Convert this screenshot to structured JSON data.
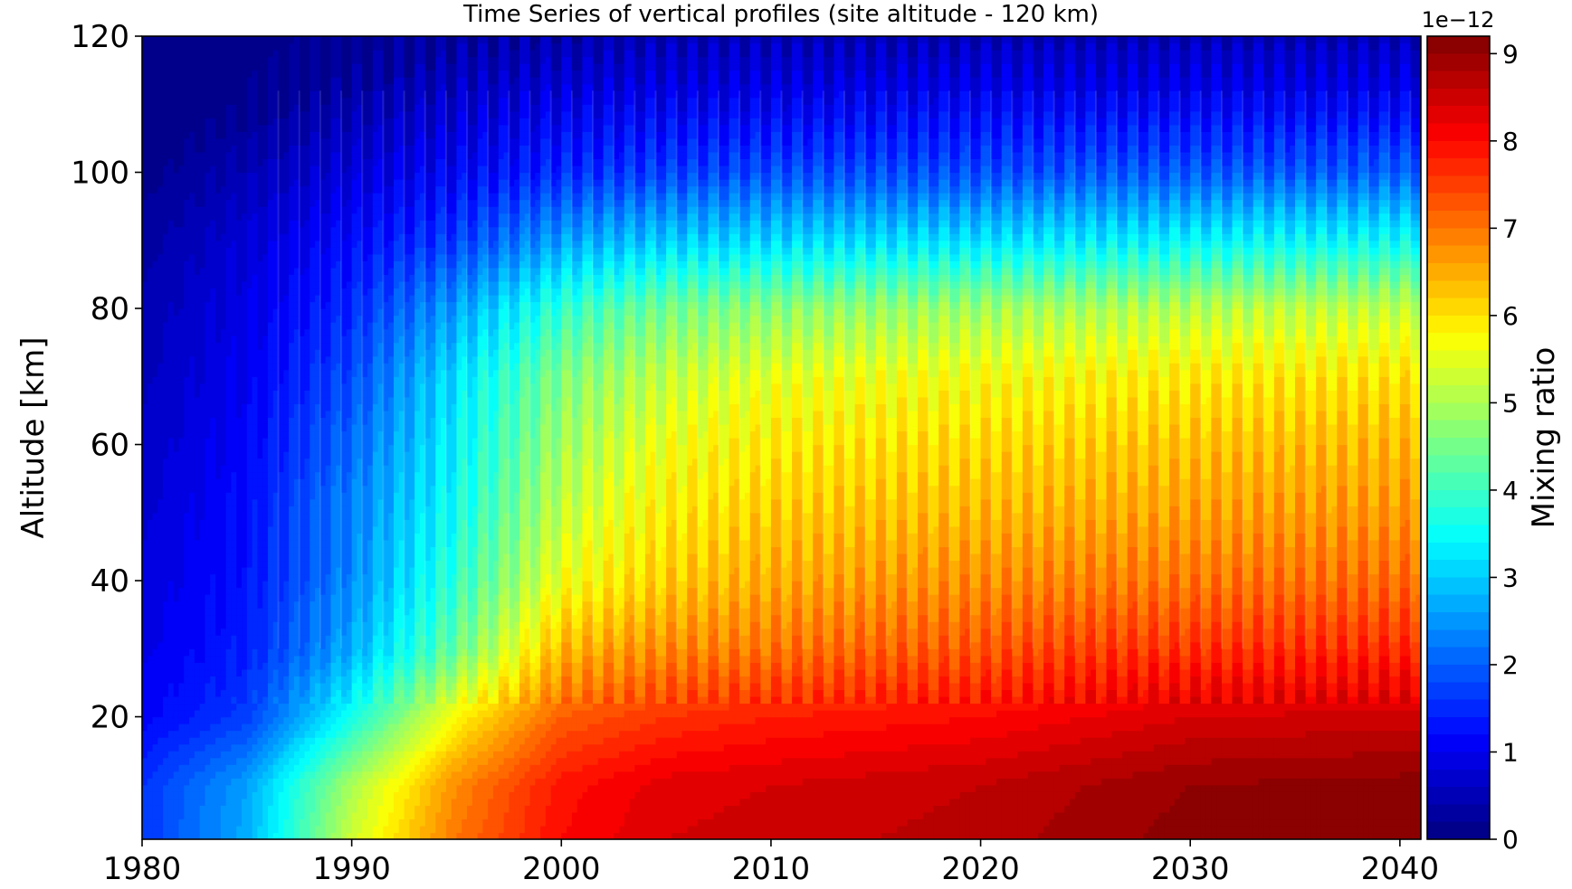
{
  "chart_data": {
    "type": "heatmap",
    "title": "Time Series of vertical profiles (site altitude - 120 km)",
    "xlabel": "",
    "ylabel": "Altitude [km]",
    "xlim": [
      1980,
      2041
    ],
    "ylim": [
      2,
      120
    ],
    "x_ticks": [
      "1980",
      "1990",
      "2000",
      "2010",
      "2020",
      "2030",
      "2040"
    ],
    "y_ticks": [
      "20",
      "40",
      "60",
      "80",
      "100",
      "120"
    ],
    "colorbar": {
      "label": "Mixing ratio",
      "scale_label": "1e−12",
      "range": [
        0,
        9.2
      ],
      "ticks": [
        "0",
        "1",
        "2",
        "3",
        "4",
        "5",
        "6",
        "7",
        "8",
        "9"
      ],
      "colormap": "jet"
    },
    "mixing_ratio_e12_by_year": {
      "altitudes_km": [
        2,
        10,
        20,
        30,
        40,
        50,
        60,
        70,
        80,
        90,
        100,
        110,
        120
      ],
      "profiles": [
        {
          "year": 1980,
          "values": [
            1.6,
            1.6,
            1.1,
            0.95,
            0.85,
            0.75,
            0.65,
            0.55,
            0.45,
            0.3,
            0.1,
            0.0,
            0.0
          ]
        },
        {
          "year": 1985,
          "values": [
            2.7,
            2.6,
            1.7,
            1.4,
            1.3,
            1.25,
            1.15,
            1.05,
            0.95,
            0.8,
            0.5,
            0.15,
            0.05
          ]
        },
        {
          "year": 1990,
          "values": [
            5.3,
            5.0,
            3.6,
            2.7,
            2.4,
            2.3,
            2.1,
            1.8,
            1.5,
            1.2,
            0.8,
            0.4,
            0.1
          ]
        },
        {
          "year": 1995,
          "values": [
            7.0,
            6.8,
            5.8,
            4.4,
            3.9,
            3.6,
            3.4,
            3.2,
            2.6,
            1.7,
            1.1,
            0.7,
            0.3
          ]
        },
        {
          "year": 2000,
          "values": [
            8.0,
            7.9,
            7.2,
            6.4,
            5.6,
            5.2,
            4.9,
            4.6,
            3.9,
            2.6,
            1.5,
            0.9,
            0.4
          ]
        },
        {
          "year": 2005,
          "values": [
            8.4,
            8.3,
            7.6,
            6.8,
            6.2,
            5.9,
            5.6,
            5.2,
            4.5,
            3.0,
            1.7,
            1.0,
            0.5
          ]
        },
        {
          "year": 2010,
          "values": [
            8.5,
            8.4,
            7.8,
            7.0,
            6.5,
            6.2,
            5.9,
            5.5,
            4.7,
            3.1,
            1.8,
            1.0,
            0.5
          ]
        },
        {
          "year": 2020,
          "values": [
            8.7,
            8.6,
            8.0,
            7.3,
            6.8,
            6.4,
            6.1,
            5.7,
            4.9,
            3.2,
            1.8,
            1.1,
            0.5
          ]
        },
        {
          "year": 2025,
          "values": [
            8.9,
            8.8,
            8.2,
            7.5,
            6.9,
            6.5,
            6.2,
            5.8,
            5.0,
            3.3,
            1.9,
            1.1,
            0.5
          ]
        },
        {
          "year": 2030,
          "values": [
            9.1,
            9.0,
            8.4,
            7.6,
            7.0,
            6.6,
            6.3,
            5.9,
            5.1,
            3.4,
            1.9,
            1.1,
            0.5
          ]
        },
        {
          "year": 2041,
          "values": [
            9.2,
            9.1,
            8.5,
            7.7,
            7.1,
            6.7,
            6.4,
            6.0,
            5.2,
            3.5,
            2.0,
            1.1,
            0.5
          ]
        }
      ]
    }
  }
}
